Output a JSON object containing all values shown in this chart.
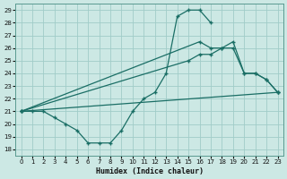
{
  "xlabel": "Humidex (Indice chaleur)",
  "bg_color": "#cce8e4",
  "grid_color": "#a0ccc8",
  "line_color": "#1a6e65",
  "xlim": [
    -0.5,
    23.5
  ],
  "ylim": [
    17.5,
    29.5
  ],
  "xticks": [
    0,
    1,
    2,
    3,
    4,
    5,
    6,
    7,
    8,
    9,
    10,
    11,
    12,
    13,
    14,
    15,
    16,
    17,
    18,
    19,
    20,
    21,
    22,
    23
  ],
  "yticks": [
    18,
    19,
    20,
    21,
    22,
    23,
    24,
    25,
    26,
    27,
    28,
    29
  ],
  "series": [
    {
      "x": [
        0,
        1,
        2,
        3,
        4,
        5,
        6,
        7,
        8,
        9,
        10,
        11,
        12,
        13,
        14,
        15,
        16,
        17
      ],
      "y": [
        21,
        21,
        21,
        20.5,
        20,
        19.5,
        18.5,
        18.5,
        18.5,
        19.5,
        21,
        22,
        22.5,
        24,
        28.5,
        29,
        29,
        28
      ]
    },
    {
      "x": [
        0,
        16,
        17,
        18,
        19,
        20,
        21,
        22,
        23
      ],
      "y": [
        21,
        26.5,
        26,
        26,
        26,
        24,
        24,
        23.5,
        22.5
      ]
    },
    {
      "x": [
        0,
        15,
        16,
        17,
        18,
        19,
        20,
        21,
        22,
        23
      ],
      "y": [
        21,
        25,
        25.5,
        25.5,
        26,
        26.5,
        24,
        24,
        23.5,
        22.5
      ]
    },
    {
      "x": [
        0,
        23
      ],
      "y": [
        21,
        22.5
      ]
    }
  ]
}
